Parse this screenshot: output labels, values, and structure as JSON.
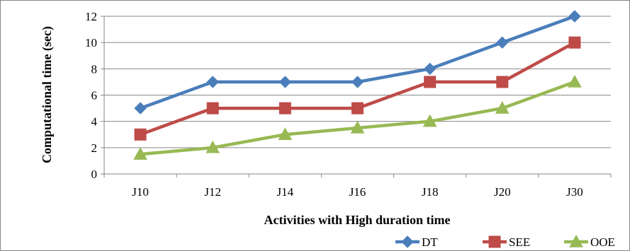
{
  "chart_data": {
    "type": "line",
    "title": "",
    "xlabel": "Activities with High duration time",
    "ylabel": "Computational time (sec)",
    "categories": [
      "J10",
      "J12",
      "J14",
      "J16",
      "J18",
      "J20",
      "J30"
    ],
    "ylim": [
      0,
      12
    ],
    "yticks": [
      0,
      2,
      4,
      6,
      8,
      10,
      12
    ],
    "grid": true,
    "legend_position": "bottom-right",
    "series": [
      {
        "name": "DT",
        "color": "#4a7ebb",
        "marker": "diamond",
        "values": [
          5,
          7,
          7,
          7,
          8,
          10,
          12
        ]
      },
      {
        "name": "SEE",
        "color": "#be4b48",
        "marker": "square",
        "values": [
          3,
          5,
          5,
          5,
          7,
          7,
          10
        ]
      },
      {
        "name": "OOE",
        "color": "#98b954",
        "marker": "triangle",
        "values": [
          1.5,
          2,
          3,
          3.5,
          4,
          5,
          7
        ]
      }
    ]
  }
}
